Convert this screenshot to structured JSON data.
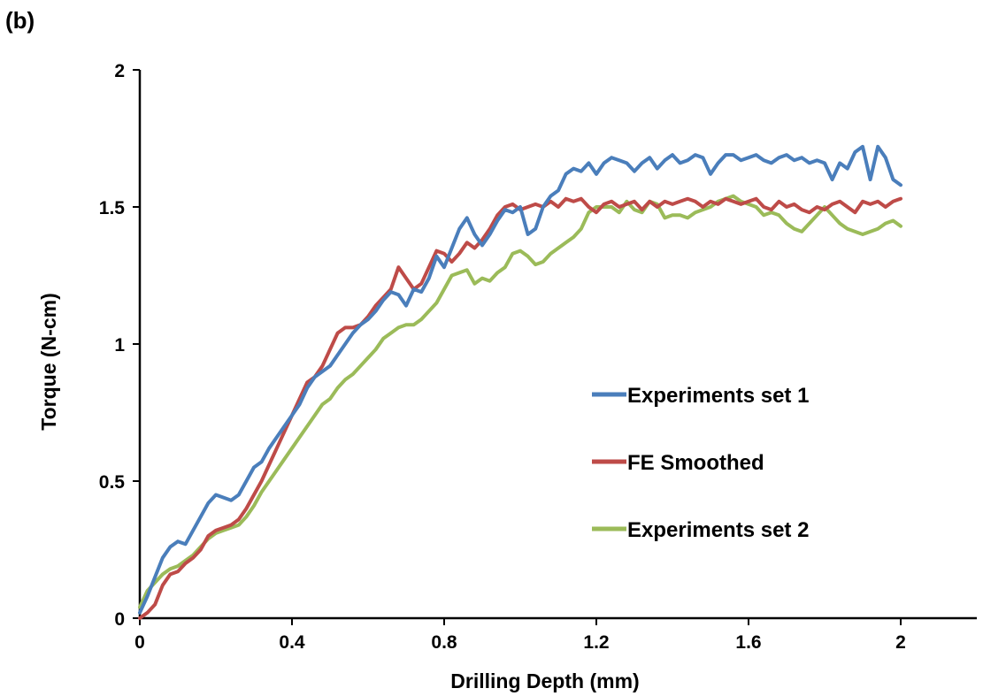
{
  "panel_label": "(b)",
  "chart_data": {
    "type": "line",
    "title": "",
    "xlabel": "Drilling Depth (mm)",
    "ylabel": "Torque (N-cm)",
    "xlim": [
      0,
      2.2
    ],
    "ylim": [
      0,
      2
    ],
    "xticks": [
      0,
      0.4,
      0.8,
      1.2,
      1.6,
      2
    ],
    "xtick_labels": [
      "0",
      "0.4",
      "0.8",
      "1.2",
      "1.6",
      "2"
    ],
    "yticks": [
      0,
      0.5,
      1,
      1.5,
      2
    ],
    "ytick_labels": [
      "0",
      "0.5",
      "1",
      "1.5",
      "2"
    ],
    "grid": false,
    "legend_position": "center-right",
    "series": [
      {
        "name": "Experiments set 1",
        "color": "#4a7ebb",
        "x": [
          0,
          0.02,
          0.04,
          0.06,
          0.08,
          0.1,
          0.12,
          0.14,
          0.16,
          0.18,
          0.2,
          0.22,
          0.24,
          0.26,
          0.28,
          0.3,
          0.32,
          0.34,
          0.36,
          0.38,
          0.4,
          0.42,
          0.44,
          0.46,
          0.48,
          0.5,
          0.52,
          0.54,
          0.56,
          0.58,
          0.6,
          0.62,
          0.64,
          0.66,
          0.68,
          0.7,
          0.72,
          0.74,
          0.76,
          0.78,
          0.8,
          0.82,
          0.84,
          0.86,
          0.88,
          0.9,
          0.92,
          0.94,
          0.96,
          0.98,
          1.0,
          1.02,
          1.04,
          1.06,
          1.08,
          1.1,
          1.12,
          1.14,
          1.16,
          1.18,
          1.2,
          1.22,
          1.24,
          1.26,
          1.28,
          1.3,
          1.32,
          1.34,
          1.36,
          1.38,
          1.4,
          1.42,
          1.44,
          1.46,
          1.48,
          1.5,
          1.52,
          1.54,
          1.56,
          1.58,
          1.6,
          1.62,
          1.64,
          1.66,
          1.68,
          1.7,
          1.72,
          1.74,
          1.76,
          1.78,
          1.8,
          1.82,
          1.84,
          1.86,
          1.88,
          1.9,
          1.92,
          1.94,
          1.96,
          1.98,
          2.0
        ],
        "y": [
          0.02,
          0.08,
          0.15,
          0.22,
          0.26,
          0.28,
          0.27,
          0.32,
          0.37,
          0.42,
          0.45,
          0.44,
          0.43,
          0.45,
          0.5,
          0.55,
          0.57,
          0.62,
          0.66,
          0.7,
          0.74,
          0.78,
          0.84,
          0.88,
          0.9,
          0.92,
          0.96,
          1.0,
          1.04,
          1.07,
          1.09,
          1.12,
          1.16,
          1.19,
          1.18,
          1.14,
          1.2,
          1.19,
          1.24,
          1.32,
          1.28,
          1.35,
          1.42,
          1.46,
          1.4,
          1.36,
          1.4,
          1.45,
          1.49,
          1.48,
          1.5,
          1.4,
          1.42,
          1.5,
          1.54,
          1.56,
          1.62,
          1.64,
          1.63,
          1.66,
          1.62,
          1.66,
          1.68,
          1.67,
          1.66,
          1.63,
          1.66,
          1.68,
          1.64,
          1.67,
          1.69,
          1.66,
          1.67,
          1.69,
          1.68,
          1.62,
          1.66,
          1.69,
          1.69,
          1.67,
          1.68,
          1.69,
          1.67,
          1.66,
          1.68,
          1.69,
          1.67,
          1.68,
          1.66,
          1.67,
          1.66,
          1.6,
          1.66,
          1.64,
          1.7,
          1.72,
          1.6,
          1.72,
          1.68,
          1.6,
          1.58
        ]
      },
      {
        "name": "FE Smoothed",
        "color": "#be4b48",
        "x": [
          0,
          0.02,
          0.04,
          0.06,
          0.08,
          0.1,
          0.12,
          0.14,
          0.16,
          0.18,
          0.2,
          0.22,
          0.24,
          0.26,
          0.28,
          0.3,
          0.32,
          0.34,
          0.36,
          0.38,
          0.4,
          0.42,
          0.44,
          0.46,
          0.48,
          0.5,
          0.52,
          0.54,
          0.56,
          0.58,
          0.6,
          0.62,
          0.64,
          0.66,
          0.68,
          0.7,
          0.72,
          0.74,
          0.76,
          0.78,
          0.8,
          0.82,
          0.84,
          0.86,
          0.88,
          0.9,
          0.92,
          0.94,
          0.96,
          0.98,
          1.0,
          1.02,
          1.04,
          1.06,
          1.08,
          1.1,
          1.12,
          1.14,
          1.16,
          1.18,
          1.2,
          1.22,
          1.24,
          1.26,
          1.28,
          1.3,
          1.32,
          1.34,
          1.36,
          1.38,
          1.4,
          1.42,
          1.44,
          1.46,
          1.48,
          1.5,
          1.52,
          1.54,
          1.56,
          1.58,
          1.6,
          1.62,
          1.64,
          1.66,
          1.68,
          1.7,
          1.72,
          1.74,
          1.76,
          1.78,
          1.8,
          1.82,
          1.84,
          1.86,
          1.88,
          1.9,
          1.92,
          1.94,
          1.96,
          1.98,
          2.0
        ],
        "y": [
          0.0,
          0.02,
          0.05,
          0.12,
          0.16,
          0.17,
          0.2,
          0.22,
          0.25,
          0.3,
          0.32,
          0.33,
          0.34,
          0.36,
          0.4,
          0.45,
          0.5,
          0.56,
          0.62,
          0.68,
          0.74,
          0.8,
          0.86,
          0.88,
          0.92,
          0.98,
          1.04,
          1.06,
          1.06,
          1.07,
          1.1,
          1.14,
          1.17,
          1.2,
          1.28,
          1.24,
          1.2,
          1.22,
          1.28,
          1.34,
          1.33,
          1.3,
          1.33,
          1.37,
          1.35,
          1.38,
          1.42,
          1.47,
          1.5,
          1.51,
          1.49,
          1.5,
          1.51,
          1.5,
          1.52,
          1.5,
          1.53,
          1.52,
          1.53,
          1.5,
          1.48,
          1.51,
          1.52,
          1.5,
          1.51,
          1.52,
          1.49,
          1.52,
          1.5,
          1.52,
          1.51,
          1.52,
          1.53,
          1.52,
          1.5,
          1.52,
          1.51,
          1.53,
          1.52,
          1.51,
          1.52,
          1.53,
          1.5,
          1.49,
          1.52,
          1.5,
          1.51,
          1.49,
          1.48,
          1.5,
          1.49,
          1.51,
          1.52,
          1.5,
          1.48,
          1.52,
          1.51,
          1.52,
          1.5,
          1.52,
          1.53
        ]
      },
      {
        "name": "Experiments set 2",
        "color": "#9bbb59",
        "x": [
          0,
          0.02,
          0.04,
          0.06,
          0.08,
          0.1,
          0.12,
          0.14,
          0.16,
          0.18,
          0.2,
          0.22,
          0.24,
          0.26,
          0.28,
          0.3,
          0.32,
          0.34,
          0.36,
          0.38,
          0.4,
          0.42,
          0.44,
          0.46,
          0.48,
          0.5,
          0.52,
          0.54,
          0.56,
          0.58,
          0.6,
          0.62,
          0.64,
          0.66,
          0.68,
          0.7,
          0.72,
          0.74,
          0.76,
          0.78,
          0.8,
          0.82,
          0.84,
          0.86,
          0.88,
          0.9,
          0.92,
          0.94,
          0.96,
          0.98,
          1.0,
          1.02,
          1.04,
          1.06,
          1.08,
          1.1,
          1.12,
          1.14,
          1.16,
          1.18,
          1.2,
          1.22,
          1.24,
          1.26,
          1.28,
          1.3,
          1.32,
          1.34,
          1.36,
          1.38,
          1.4,
          1.42,
          1.44,
          1.46,
          1.48,
          1.5,
          1.52,
          1.54,
          1.56,
          1.58,
          1.6,
          1.62,
          1.64,
          1.66,
          1.68,
          1.7,
          1.72,
          1.74,
          1.76,
          1.78,
          1.8,
          1.82,
          1.84,
          1.86,
          1.88,
          1.9,
          1.92,
          1.94,
          1.96,
          1.98,
          2.0
        ],
        "y": [
          0.04,
          0.1,
          0.13,
          0.16,
          0.18,
          0.19,
          0.21,
          0.23,
          0.26,
          0.29,
          0.31,
          0.32,
          0.33,
          0.34,
          0.37,
          0.41,
          0.46,
          0.5,
          0.54,
          0.58,
          0.62,
          0.66,
          0.7,
          0.74,
          0.78,
          0.8,
          0.84,
          0.87,
          0.89,
          0.92,
          0.95,
          0.98,
          1.02,
          1.04,
          1.06,
          1.07,
          1.07,
          1.09,
          1.12,
          1.15,
          1.2,
          1.25,
          1.26,
          1.27,
          1.22,
          1.24,
          1.23,
          1.26,
          1.28,
          1.33,
          1.34,
          1.32,
          1.29,
          1.3,
          1.33,
          1.35,
          1.37,
          1.39,
          1.42,
          1.48,
          1.5,
          1.5,
          1.5,
          1.48,
          1.52,
          1.49,
          1.48,
          1.52,
          1.51,
          1.46,
          1.47,
          1.47,
          1.46,
          1.48,
          1.49,
          1.5,
          1.52,
          1.53,
          1.54,
          1.52,
          1.51,
          1.5,
          1.47,
          1.48,
          1.47,
          1.44,
          1.42,
          1.41,
          1.44,
          1.47,
          1.5,
          1.47,
          1.44,
          1.42,
          1.41,
          1.4,
          1.41,
          1.42,
          1.44,
          1.45,
          1.43
        ]
      }
    ]
  }
}
